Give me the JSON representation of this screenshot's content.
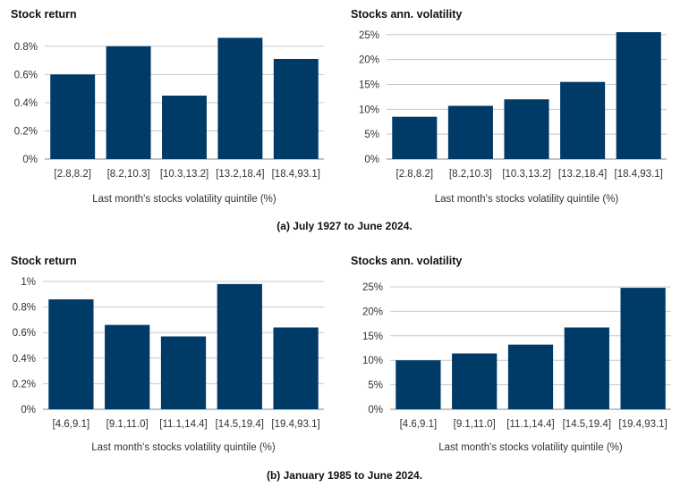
{
  "colors": {
    "bar": "#003a67",
    "grid": "#c8c8c8"
  },
  "captions": {
    "a": "(a) July 1927 to June 2024.",
    "b": "(b) January 1985 to June 2024."
  },
  "chart_data": [
    {
      "type": "bar",
      "title": "Stock return",
      "xlabel": "Last month's stocks volatility quintile (%)",
      "ylabel": "",
      "categories": [
        "[2.8,8.2]",
        "[8.2,10.3]",
        "[10.3,13.2]",
        "[13.2,18.4]",
        "[18.4,93.1]"
      ],
      "values": [
        0.6,
        0.8,
        0.45,
        0.86,
        0.71
      ],
      "ylim": [
        0,
        0.9
      ],
      "yticks": [
        0,
        0.2,
        0.4,
        0.6,
        0.8
      ],
      "ytick_labels": [
        "0%",
        "0.2%",
        "0.4%",
        "0.6%",
        "0.8%"
      ],
      "grid": true
    },
    {
      "type": "bar",
      "title": "Stocks ann. volatility",
      "xlabel": "Last month's stocks volatility quintile (%)",
      "ylabel": "",
      "categories": [
        "[2.8,8.2]",
        "[8.2,10.3]",
        "[10.3,13.2]",
        "[13.2,18.4]",
        "[18.4,93.1]"
      ],
      "values": [
        8.5,
        10.7,
        12.0,
        15.5,
        25.5
      ],
      "ylim": [
        0,
        25.5
      ],
      "yticks": [
        0,
        5,
        10,
        15,
        20,
        25
      ],
      "ytick_labels": [
        "0%",
        "5%",
        "10%",
        "15%",
        "20%",
        "25%"
      ],
      "grid": true
    },
    {
      "type": "bar",
      "title": "Stock return",
      "xlabel": "Last month's stocks volatility quintile (%)",
      "ylabel": "",
      "categories": [
        "[4.6,9.1]",
        "[9.1,11.0]",
        "[11.1,14.4]",
        "[14.5,19.4]",
        "[19.4,93.1]"
      ],
      "values": [
        0.86,
        0.66,
        0.57,
        0.98,
        0.64
      ],
      "ylim": [
        0,
        1.0
      ],
      "yticks": [
        0,
        0.2,
        0.4,
        0.6,
        0.8,
        1.0
      ],
      "ytick_labels": [
        "0%",
        "0.2%",
        "0.4%",
        "0.6%",
        "0.8%",
        "1%"
      ],
      "grid": true
    },
    {
      "type": "bar",
      "title": "Stocks ann. volatility",
      "xlabel": "Last month's stocks volatility quintile (%)",
      "ylabel": "",
      "categories": [
        "[4.6,9.1]",
        "[9.1,11.0]",
        "[11.1,14.4]",
        "[14.5,19.4]",
        "[19.4,93.1]"
      ],
      "values": [
        10.0,
        11.4,
        13.2,
        16.7,
        24.8
      ],
      "ylim": [
        0,
        25
      ],
      "yticks": [
        0,
        5,
        10,
        15,
        20,
        25
      ],
      "ytick_labels": [
        "0%",
        "5%",
        "10%",
        "15%",
        "20%",
        "25%"
      ],
      "grid": true
    }
  ]
}
